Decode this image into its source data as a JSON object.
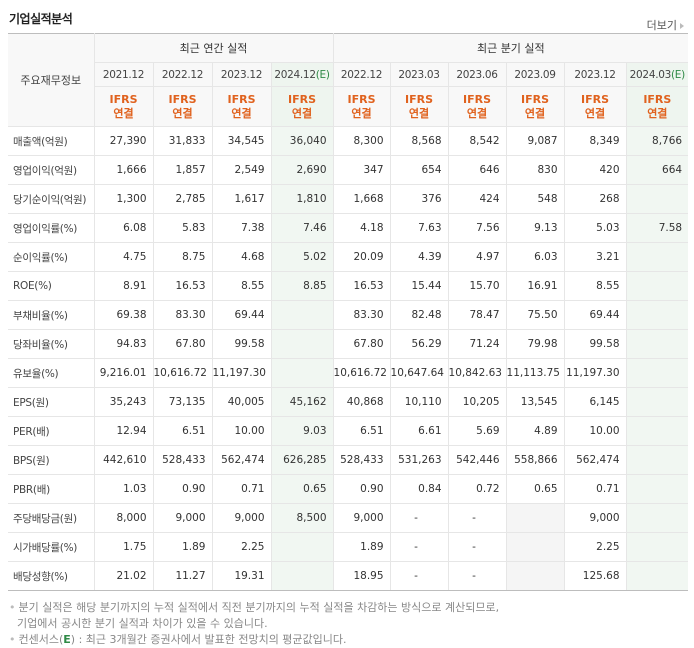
{
  "section_title": "기업실적분석",
  "more_link": "더보기",
  "header": {
    "row_label": "주요재무정보",
    "annual_group": "최근 연간 실적",
    "quarterly_group": "최근 분기 실적",
    "annual_periods": [
      {
        "label": "2021.12",
        "est": ""
      },
      {
        "label": "2022.12",
        "est": ""
      },
      {
        "label": "2023.12",
        "est": ""
      },
      {
        "label": "2024.12",
        "est": "(E)"
      }
    ],
    "quarterly_periods": [
      {
        "label": "2022.12",
        "est": ""
      },
      {
        "label": "2023.03",
        "est": ""
      },
      {
        "label": "2023.06",
        "est": ""
      },
      {
        "label": "2023.09",
        "est": ""
      },
      {
        "label": "2023.12",
        "est": ""
      },
      {
        "label": "2024.03",
        "est": "(E)"
      }
    ],
    "ifrs_top": "IFRS",
    "ifrs_bottom": "연결"
  },
  "rows": [
    {
      "label": "매출액(억원)",
      "values": [
        "27,390",
        "31,833",
        "34,545",
        "36,040",
        "8,300",
        "8,568",
        "8,542",
        "9,087",
        "8,349",
        "8,766"
      ]
    },
    {
      "label": "영업이익(억원)",
      "values": [
        "1,666",
        "1,857",
        "2,549",
        "2,690",
        "347",
        "654",
        "646",
        "830",
        "420",
        "664"
      ]
    },
    {
      "label": "당기순이익(억원)",
      "values": [
        "1,300",
        "2,785",
        "1,617",
        "1,810",
        "1,668",
        "376",
        "424",
        "548",
        "268",
        ""
      ]
    },
    {
      "label": "영업이익률(%)",
      "values": [
        "6.08",
        "5.83",
        "7.38",
        "7.46",
        "4.18",
        "7.63",
        "7.56",
        "9.13",
        "5.03",
        "7.58"
      ]
    },
    {
      "label": "순이익률(%)",
      "values": [
        "4.75",
        "8.75",
        "4.68",
        "5.02",
        "20.09",
        "4.39",
        "4.97",
        "6.03",
        "3.21",
        ""
      ]
    },
    {
      "label": "ROE(%)",
      "values": [
        "8.91",
        "16.53",
        "8.55",
        "8.85",
        "16.53",
        "15.44",
        "15.70",
        "16.91",
        "8.55",
        ""
      ]
    },
    {
      "label": "부채비율(%)",
      "values": [
        "69.38",
        "83.30",
        "69.44",
        "",
        "83.30",
        "82.48",
        "78.47",
        "75.50",
        "69.44",
        ""
      ]
    },
    {
      "label": "당좌비율(%)",
      "values": [
        "94.83",
        "67.80",
        "99.58",
        "",
        "67.80",
        "56.29",
        "71.24",
        "79.98",
        "99.58",
        ""
      ]
    },
    {
      "label": "유보율(%)",
      "values": [
        "9,216.01",
        "10,616.72",
        "11,197.30",
        "",
        "10,616.72",
        "10,647.64",
        "10,842.63",
        "11,113.75",
        "11,197.30",
        ""
      ]
    },
    {
      "label": "EPS(원)",
      "values": [
        "35,243",
        "73,135",
        "40,005",
        "45,162",
        "40,868",
        "10,110",
        "10,205",
        "13,545",
        "6,145",
        ""
      ]
    },
    {
      "label": "PER(배)",
      "values": [
        "12.94",
        "6.51",
        "10.00",
        "9.03",
        "6.51",
        "6.61",
        "5.69",
        "4.89",
        "10.00",
        ""
      ]
    },
    {
      "label": "BPS(원)",
      "values": [
        "442,610",
        "528,433",
        "562,474",
        "626,285",
        "528,433",
        "531,263",
        "542,446",
        "558,866",
        "562,474",
        ""
      ]
    },
    {
      "label": "PBR(배)",
      "values": [
        "1.03",
        "0.90",
        "0.71",
        "0.65",
        "0.90",
        "0.84",
        "0.72",
        "0.65",
        "0.71",
        ""
      ]
    },
    {
      "label": "주당배당금(원)",
      "values": [
        "8,000",
        "9,000",
        "9,000",
        "8,500",
        "9,000",
        "-",
        "-",
        "",
        "9,000",
        ""
      ]
    },
    {
      "label": "시가배당률(%)",
      "values": [
        "1.75",
        "1.89",
        "2.25",
        "",
        "1.89",
        "-",
        "-",
        "",
        "2.25",
        ""
      ]
    },
    {
      "label": "배당성향(%)",
      "values": [
        "21.02",
        "11.27",
        "19.31",
        "",
        "18.95",
        "-",
        "-",
        "",
        "125.68",
        ""
      ]
    }
  ],
  "notes": {
    "line1": "분기 실적은 해당 분기까지의 누적 실적에서 직전 분기까지의 누적 실적을 차감하는 방식으로 계산되므로,",
    "line2": "기업에서 공시한 분기 실적과 차이가 있을 수 있습니다.",
    "line3_prefix": "컨센서스(",
    "line3_e": "E",
    "line3_suffix": ") : 최근 3개월간 증권사에서 발표한 전망치의 평균값입니다."
  },
  "colors": {
    "ifrs_orange": "#e0621e",
    "estimate_green": "#2f8a46",
    "estimate_col_bg": "#f1f7f2"
  }
}
